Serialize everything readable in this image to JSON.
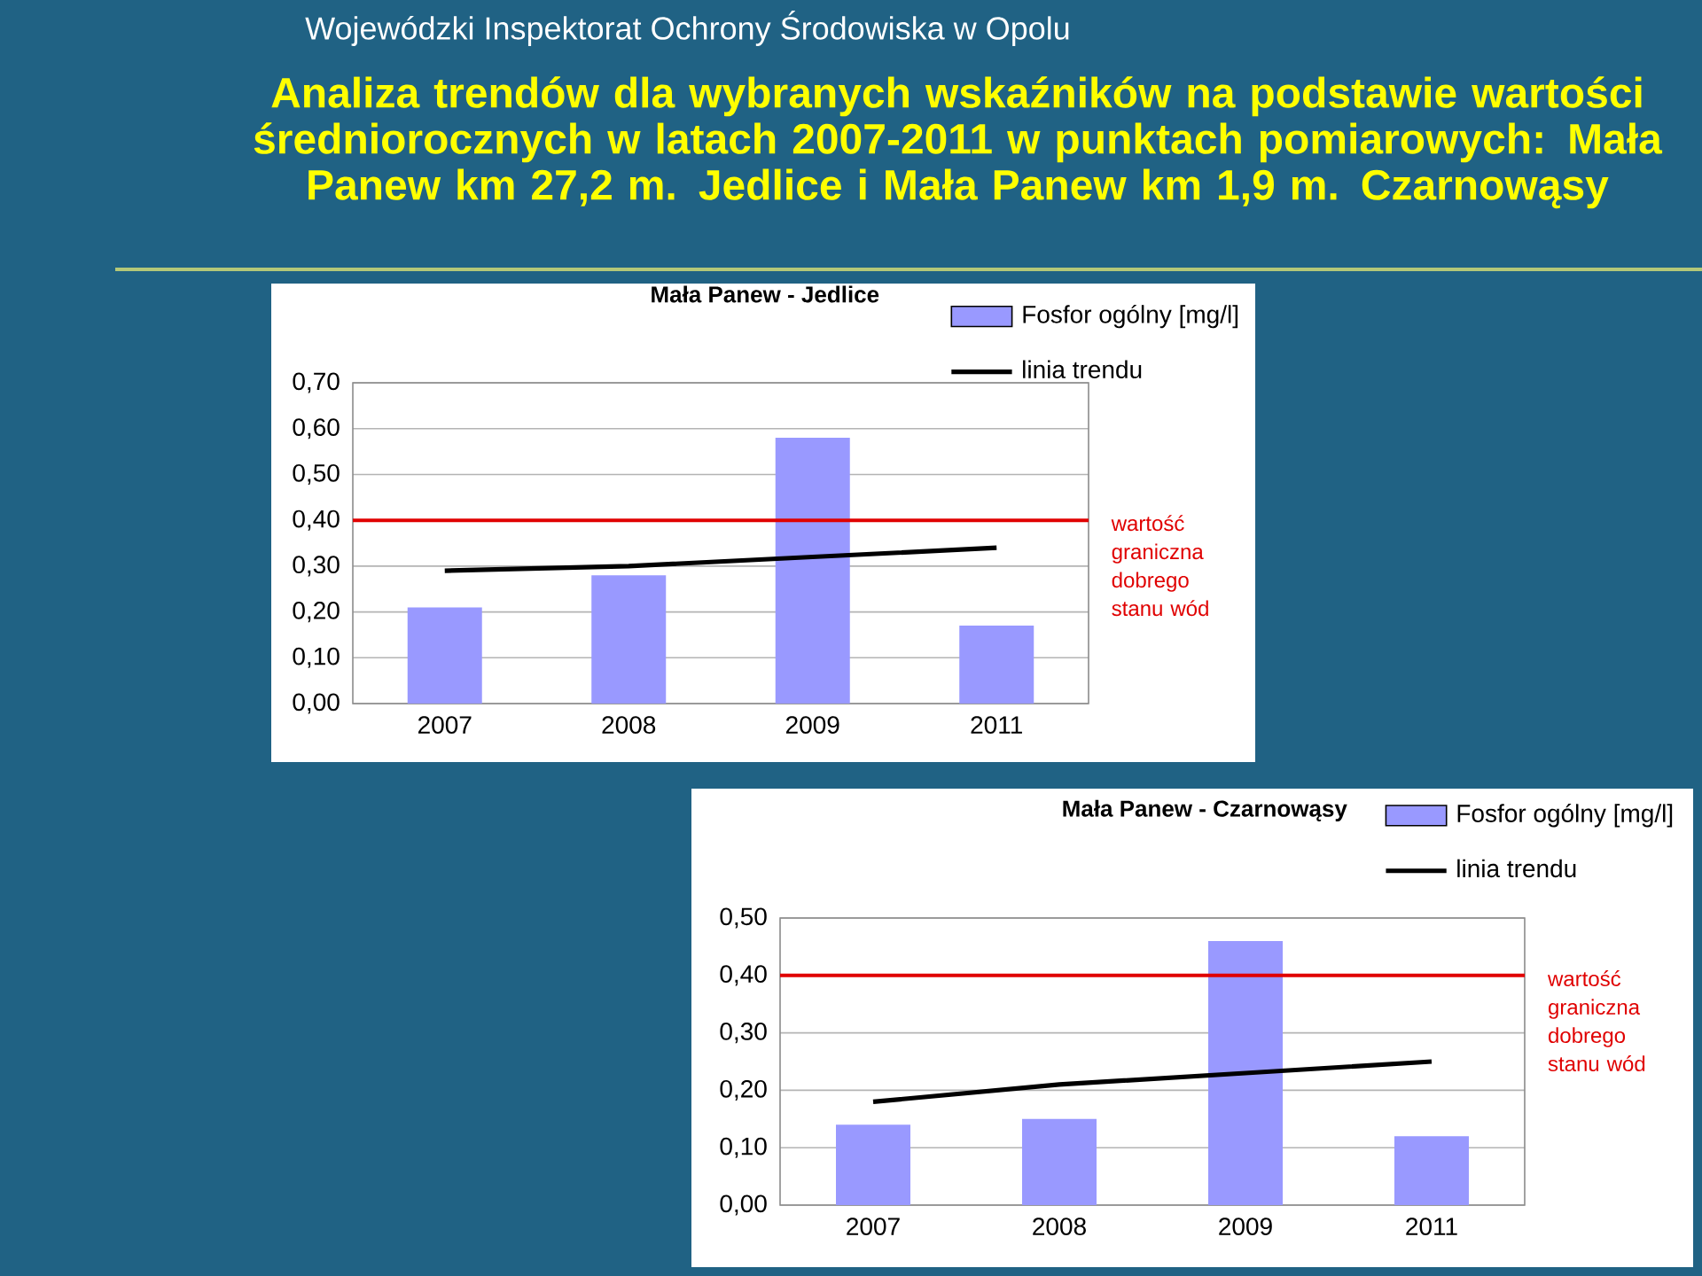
{
  "chart_data": [
    {
      "type": "other",
      "title": "Analiza trendów dla wybranych wskaźników na podstawie wartości średniorocznych w latach 2007-2011 w punktach pomiarowych: Mała Panew km 27,2 m. Jedlice i Mała Panew km 1,9 m. Czarnowąsy",
      "annotations": [
        "Wojewódzki Inspektorat Ochrony Środowiska w Opolu"
      ]
    },
    {
      "type": "bar",
      "title": "Mała Panew - Jedlice",
      "categories": [
        "2007",
        "2008",
        "2009",
        "2011"
      ],
      "series": [
        {
          "name": "Fosfor ogólny [mg/l]",
          "color": "#9999ff",
          "values": [
            0.21,
            0.28,
            0.58,
            0.17
          ]
        },
        {
          "name": "linia trendu",
          "type": "line",
          "color": "#000000",
          "values": [
            0.29,
            0.3,
            0.32,
            0.34
          ]
        }
      ],
      "ylim": [
        0,
        0.7
      ],
      "yticks": [
        {
          "value": 0,
          "label": "0,00"
        },
        {
          "value": 0.1,
          "label": "0,10"
        },
        {
          "value": 0.2,
          "label": "0,20"
        },
        {
          "value": 0.3,
          "label": "0,30"
        },
        {
          "value": 0.4,
          "label": "0,40"
        },
        {
          "value": 0.5,
          "label": "0,50"
        },
        {
          "value": 0.6,
          "label": "0,60"
        },
        {
          "value": 0.7,
          "label": "0,70"
        }
      ],
      "grid": "y",
      "legend": "top right",
      "ref_lines": [
        {
          "axis": "y",
          "value": 0.4,
          "label": "wartość graniczna dobrego stanu wód",
          "color": "#e00000"
        }
      ]
    },
    {
      "type": "bar",
      "title": "Mała Panew - Czarnowąsy",
      "categories": [
        "2007",
        "2008",
        "2009",
        "2011"
      ],
      "series": [
        {
          "name": "Fosfor ogólny [mg/l]",
          "color": "#9999ff",
          "values": [
            0.14,
            0.15,
            0.46,
            0.12
          ]
        },
        {
          "name": "linia trendu",
          "type": "line",
          "color": "#000000",
          "values": [
            0.18,
            0.21,
            0.23,
            0.25
          ]
        }
      ],
      "ylim": [
        0,
        0.5
      ],
      "yticks": [
        {
          "value": 0,
          "label": "0,00"
        },
        {
          "value": 0.1,
          "label": "0,10"
        },
        {
          "value": 0.2,
          "label": "0,20"
        },
        {
          "value": 0.3,
          "label": "0,30"
        },
        {
          "value": 0.4,
          "label": "0,40"
        },
        {
          "value": 0.5,
          "label": "0,50"
        }
      ],
      "grid": "y",
      "legend": "top right",
      "ref_lines": [
        {
          "axis": "y",
          "value": 0.4,
          "label": "wartość graniczna dobrego stanu wód",
          "color": "#e00000"
        }
      ]
    }
  ]
}
